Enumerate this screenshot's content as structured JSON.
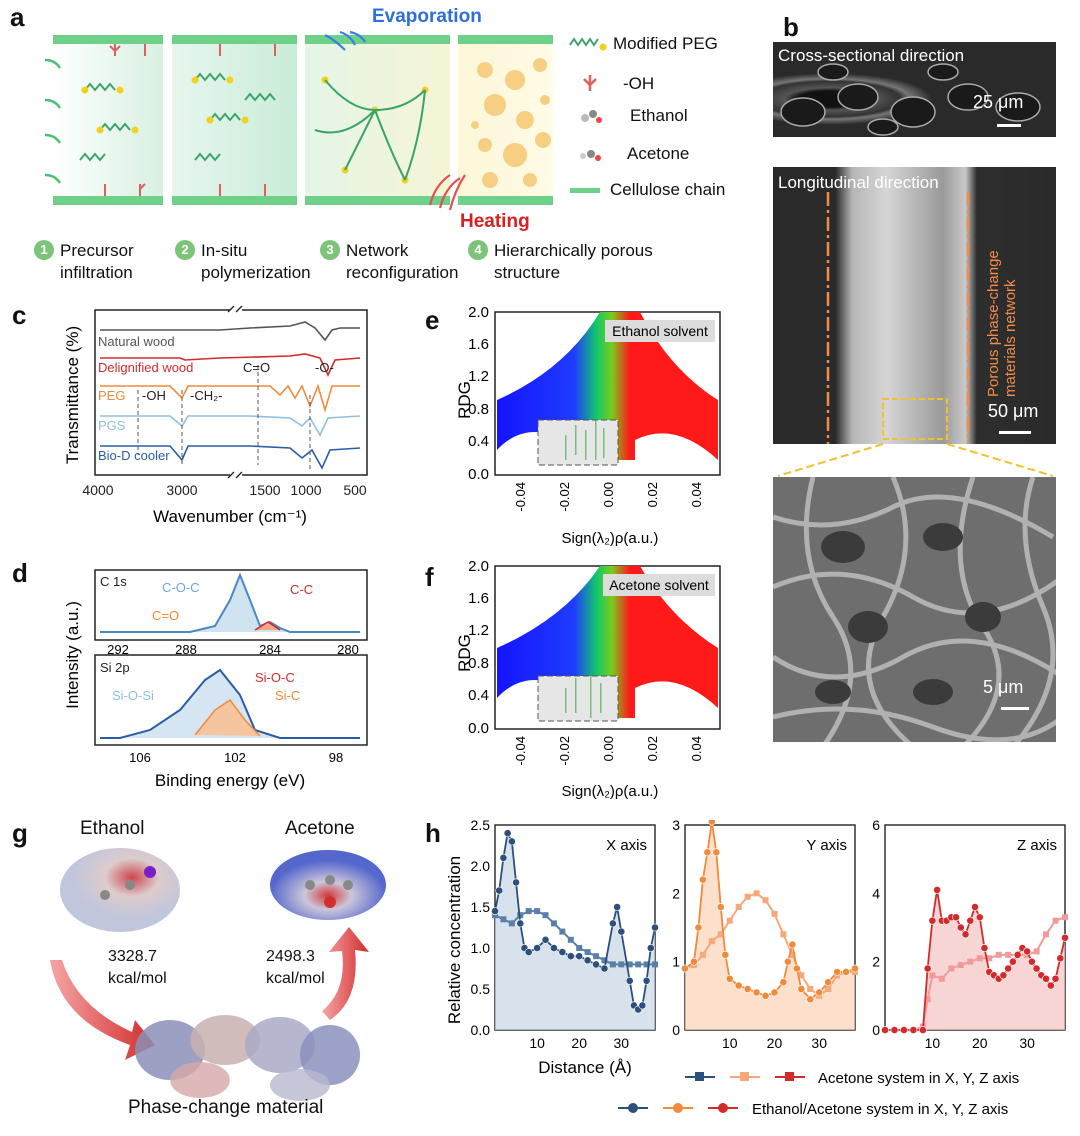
{
  "panels": {
    "a": "a",
    "b": "b",
    "c": "c",
    "d": "d",
    "e": "e",
    "f": "f",
    "g": "g",
    "h": "h"
  },
  "panel_a": {
    "evaporation": "Evaporation",
    "heating": "Heating",
    "legend": [
      "Modified PEG",
      "-OH",
      "Ethanol",
      "Acetone",
      "Cellulose chain"
    ],
    "steps": [
      {
        "num": "1",
        "l1": "Precursor",
        "l2": "infiltration"
      },
      {
        "num": "2",
        "l1": "In-situ",
        "l2": "polymerization"
      },
      {
        "num": "3",
        "l1": "Network",
        "l2": "reconfiguration"
      },
      {
        "num": "4",
        "l1": "Hierarchically porous",
        "l2": "structure"
      }
    ]
  },
  "panel_b": {
    "top_title": "Cross-sectional direction",
    "top_scale": "25 μm",
    "mid_title": "Longitudinal direction",
    "mid_side": "Porous phase-change materials network",
    "mid_scale": "50 μm",
    "bot_scale": "5 μm"
  },
  "chart_data": [
    {
      "id": "c",
      "type": "line",
      "xlabel": "Wavenumber (cm⁻¹)",
      "ylabel": "Transmittance (%)",
      "xticks": [
        "4000",
        "3000",
        "1500",
        "1000",
        "500"
      ],
      "series": [
        {
          "name": "Natural wood",
          "color": "#555555"
        },
        {
          "name": "Delignified wood",
          "color": "#d22b2b"
        },
        {
          "name": "PEG",
          "color": "#f08a3c"
        },
        {
          "name": "PGS",
          "color": "#8fbfe0"
        },
        {
          "name": "Bio-D cooler",
          "color": "#2a5ca8"
        }
      ],
      "annotations": [
        "-OH",
        "-CH₂-",
        "C=O",
        "-O-"
      ]
    },
    {
      "id": "d",
      "type": "line",
      "xlabel": "Binding energy (eV)",
      "ylabel": "Intensity (a.u.)",
      "subplots": [
        {
          "name": "C 1s",
          "xticks": [
            "292",
            "288",
            "284",
            "280"
          ],
          "peaks": [
            "C-O-C",
            "C=O",
            "C-C"
          ]
        },
        {
          "name": "Si 2p",
          "xticks": [
            "106",
            "102",
            "98"
          ],
          "peaks": [
            "Si-O-Si",
            "Si-O-C",
            "Si-C"
          ]
        }
      ]
    },
    {
      "id": "e",
      "type": "scatter",
      "title": "Ethanol solvent",
      "xlabel": "Sign(λ₂)ρ(a.u.)",
      "ylabel": "RDG",
      "xlim": [
        -0.05,
        0.05
      ],
      "ylim": [
        0,
        2.0
      ],
      "xticks": [
        "-0.04",
        "-0.02",
        "0.00",
        "0.02",
        "0.04"
      ],
      "yticks": [
        "0.0",
        "0.4",
        "0.8",
        "1.2",
        "1.6",
        "2.0"
      ]
    },
    {
      "id": "f",
      "type": "scatter",
      "title": "Acetone solvent",
      "xlabel": "Sign(λ₂)ρ(a.u.)",
      "ylabel": "RDG",
      "xlim": [
        -0.05,
        0.05
      ],
      "ylim": [
        0,
        2.0
      ],
      "xticks": [
        "-0.04",
        "-0.02",
        "0.00",
        "0.02",
        "0.04"
      ],
      "yticks": [
        "0.0",
        "0.4",
        "0.8",
        "1.2",
        "1.6",
        "2.0"
      ]
    },
    {
      "id": "h",
      "type": "line",
      "ylabel": "Relative concentration",
      "xlabel": "Distance (Å)",
      "subplots": [
        {
          "name": "X axis",
          "color": "#2c4f7c",
          "ylim": [
            0,
            2.5
          ],
          "yticks": [
            "0.0",
            "0.5",
            "1.0",
            "1.5",
            "2.0",
            "2.5"
          ],
          "xticks": [
            "10",
            "20",
            "30"
          ],
          "acetone": [
            [
              0,
              1.4
            ],
            [
              2,
              1.35
            ],
            [
              4,
              1.3
            ],
            [
              6,
              1.4
            ],
            [
              8,
              1.45
            ],
            [
              10,
              1.45
            ],
            [
              12,
              1.4
            ],
            [
              14,
              1.3
            ],
            [
              16,
              1.2
            ],
            [
              18,
              1.1
            ],
            [
              20,
              1.0
            ],
            [
              22,
              0.95
            ],
            [
              24,
              0.9
            ],
            [
              26,
              0.85
            ],
            [
              28,
              0.8
            ],
            [
              30,
              0.8
            ],
            [
              32,
              0.8
            ],
            [
              34,
              0.8
            ],
            [
              36,
              0.8
            ],
            [
              38,
              0.8
            ]
          ],
          "ethanol": [
            [
              0,
              1.45
            ],
            [
              1,
              1.7
            ],
            [
              2,
              2.1
            ],
            [
              3,
              2.4
            ],
            [
              4,
              2.3
            ],
            [
              5,
              1.8
            ],
            [
              6,
              1.3
            ],
            [
              7,
              1.0
            ],
            [
              8,
              0.95
            ],
            [
              10,
              1.0
            ],
            [
              12,
              1.1
            ],
            [
              14,
              1.0
            ],
            [
              16,
              0.95
            ],
            [
              18,
              0.9
            ],
            [
              20,
              0.9
            ],
            [
              22,
              0.85
            ],
            [
              24,
              0.8
            ],
            [
              26,
              0.75
            ],
            [
              28,
              1.3
            ],
            [
              29,
              1.5
            ],
            [
              30,
              1.2
            ],
            [
              32,
              0.6
            ],
            [
              33,
              0.3
            ],
            [
              34,
              0.25
            ],
            [
              35,
              0.3
            ],
            [
              36,
              0.6
            ],
            [
              37,
              1.0
            ],
            [
              38,
              1.25
            ]
          ]
        },
        {
          "name": "Y axis",
          "color": "#f08a3c",
          "ylim": [
            0,
            3
          ],
          "yticks": [
            "0",
            "1",
            "2",
            "3"
          ],
          "xticks": [
            "10",
            "20",
            "30"
          ],
          "acetone": [
            [
              0,
              0.9
            ],
            [
              2,
              0.95
            ],
            [
              4,
              1.1
            ],
            [
              6,
              1.3
            ],
            [
              8,
              1.4
            ],
            [
              10,
              1.6
            ],
            [
              12,
              1.8
            ],
            [
              14,
              1.95
            ],
            [
              16,
              2.0
            ],
            [
              18,
              1.9
            ],
            [
              20,
              1.7
            ],
            [
              22,
              1.4
            ],
            [
              24,
              1.1
            ],
            [
              26,
              0.8
            ],
            [
              28,
              0.6
            ],
            [
              30,
              0.5
            ],
            [
              32,
              0.6
            ],
            [
              34,
              0.8
            ],
            [
              36,
              0.85
            ],
            [
              38,
              0.85
            ]
          ],
          "ethanol": [
            [
              0,
              0.9
            ],
            [
              2,
              1.0
            ],
            [
              3,
              1.5
            ],
            [
              4,
              2.2
            ],
            [
              5,
              2.6
            ],
            [
              6,
              3.05
            ],
            [
              7,
              2.6
            ],
            [
              8,
              1.8
            ],
            [
              9,
              1.1
            ],
            [
              10,
              0.75
            ],
            [
              12,
              0.65
            ],
            [
              14,
              0.6
            ],
            [
              16,
              0.55
            ],
            [
              18,
              0.5
            ],
            [
              20,
              0.55
            ],
            [
              22,
              0.7
            ],
            [
              23,
              1.0
            ],
            [
              24,
              1.25
            ],
            [
              25,
              0.9
            ],
            [
              26,
              0.6
            ],
            [
              28,
              0.45
            ],
            [
              30,
              0.55
            ],
            [
              32,
              0.7
            ],
            [
              34,
              0.85
            ],
            [
              36,
              0.85
            ],
            [
              38,
              0.9
            ]
          ]
        },
        {
          "name": "Z axis",
          "color": "#d22b2b",
          "ylim": [
            0,
            6
          ],
          "yticks": [
            "0",
            "2",
            "4",
            "6"
          ],
          "xticks": [
            "10",
            "20",
            "30"
          ],
          "acetone": [
            [
              0,
              0
            ],
            [
              6,
              0
            ],
            [
              8,
              0.1
            ],
            [
              9,
              0.9
            ],
            [
              10,
              1.6
            ],
            [
              12,
              1.5
            ],
            [
              14,
              1.8
            ],
            [
              16,
              1.9
            ],
            [
              18,
              2.0
            ],
            [
              20,
              2.1
            ],
            [
              22,
              2.1
            ],
            [
              24,
              2.2
            ],
            [
              26,
              2.2
            ],
            [
              28,
              2.2
            ],
            [
              30,
              2.2
            ],
            [
              32,
              2.3
            ],
            [
              34,
              2.8
            ],
            [
              36,
              3.2
            ],
            [
              38,
              3.3
            ]
          ],
          "ethanol": [
            [
              0,
              0
            ],
            [
              2,
              0
            ],
            [
              4,
              0
            ],
            [
              6,
              0
            ],
            [
              8,
              0
            ],
            [
              9,
              1.8
            ],
            [
              10,
              3.2
            ],
            [
              11,
              4.1
            ],
            [
              12,
              3.2
            ],
            [
              13,
              3.2
            ],
            [
              14,
              3.3
            ],
            [
              15,
              3.3
            ],
            [
              16,
              3.0
            ],
            [
              17,
              2.8
            ],
            [
              18,
              3.2
            ],
            [
              19,
              3.6
            ],
            [
              20,
              3.3
            ],
            [
              21,
              2.4
            ],
            [
              22,
              1.7
            ],
            [
              23,
              1.6
            ],
            [
              24,
              1.5
            ],
            [
              25,
              1.6
            ],
            [
              26,
              1.8
            ],
            [
              27,
              2.0
            ],
            [
              28,
              2.2
            ],
            [
              29,
              2.4
            ],
            [
              30,
              2.3
            ],
            [
              31,
              2.0
            ],
            [
              32,
              1.8
            ],
            [
              33,
              1.6
            ],
            [
              34,
              1.5
            ],
            [
              35,
              1.3
            ],
            [
              36,
              1.5
            ],
            [
              37,
              2.1
            ],
            [
              38,
              2.7
            ]
          ]
        }
      ],
      "legend": [
        "Acetone system in X, Y, Z axis",
        "Ethanol/Acetone system in X, Y, Z axis"
      ]
    }
  ],
  "panel_g": {
    "ethanol": "Ethanol",
    "acetone": "Acetone",
    "energy1": "3328.7",
    "energy1_unit": "kcal/mol",
    "energy2": "2498.3",
    "energy2_unit": "kcal/mol",
    "pcm": "Phase-change material"
  }
}
